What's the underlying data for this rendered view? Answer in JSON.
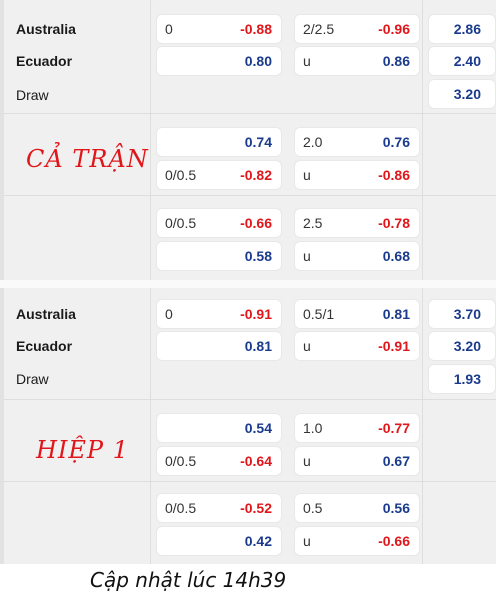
{
  "sections": [
    {
      "teams": {
        "home": "Australia",
        "away": "Ecuador",
        "draw": "Draw"
      },
      "main": {
        "hcap_line": "0",
        "hcap_home": "-0.88",
        "hcap_away": "0.80",
        "ou_line": "2/2.5",
        "ou_over": "-0.96",
        "ou_under_label": "u",
        "ou_under": "0.86",
        "x12_home": "2.86",
        "x12_away": "2.40",
        "x12_draw": "3.20"
      },
      "label": "CẢ TRẬN",
      "alt": [
        {
          "hcap_line_top": "",
          "hcap_top": "0.74",
          "hcap_line_bottom": "0/0.5",
          "hcap_bottom": "-0.82",
          "ou_line": "2.0",
          "ou_over": "0.76",
          "ou_under_label": "u",
          "ou_under": "-0.86"
        },
        {
          "hcap_line_top": "0/0.5",
          "hcap_top": "-0.66",
          "hcap_line_bottom": "",
          "hcap_bottom": "0.58",
          "ou_line": "2.5",
          "ou_over": "-0.78",
          "ou_under_label": "u",
          "ou_under": "0.68"
        }
      ]
    },
    {
      "teams": {
        "home": "Australia",
        "away": "Ecuador",
        "draw": "Draw"
      },
      "main": {
        "hcap_line": "0",
        "hcap_home": "-0.91",
        "hcap_away": "0.81",
        "ou_line": "0.5/1",
        "ou_over": "0.81",
        "ou_under_label": "u",
        "ou_under": "-0.91",
        "x12_home": "3.70",
        "x12_away": "3.20",
        "x12_draw": "1.93"
      },
      "label": "HIỆP 1",
      "alt": [
        {
          "hcap_line_top": "",
          "hcap_top": "0.54",
          "hcap_line_bottom": "0/0.5",
          "hcap_bottom": "-0.64",
          "ou_line": "1.0",
          "ou_over": "-0.77",
          "ou_under_label": "u",
          "ou_under": "0.67"
        },
        {
          "hcap_line_top": "0/0.5",
          "hcap_top": "-0.52",
          "hcap_line_bottom": "",
          "hcap_bottom": "0.42",
          "ou_line": "0.5",
          "ou_over": "0.56",
          "ou_under_label": "u",
          "ou_under": "-0.66"
        }
      ]
    }
  ],
  "footer": "Cập nhật lúc 14h39",
  "colors": {
    "negative": "#e0161b",
    "positive": "#1a3a8c",
    "background": "#f0f0f0"
  }
}
